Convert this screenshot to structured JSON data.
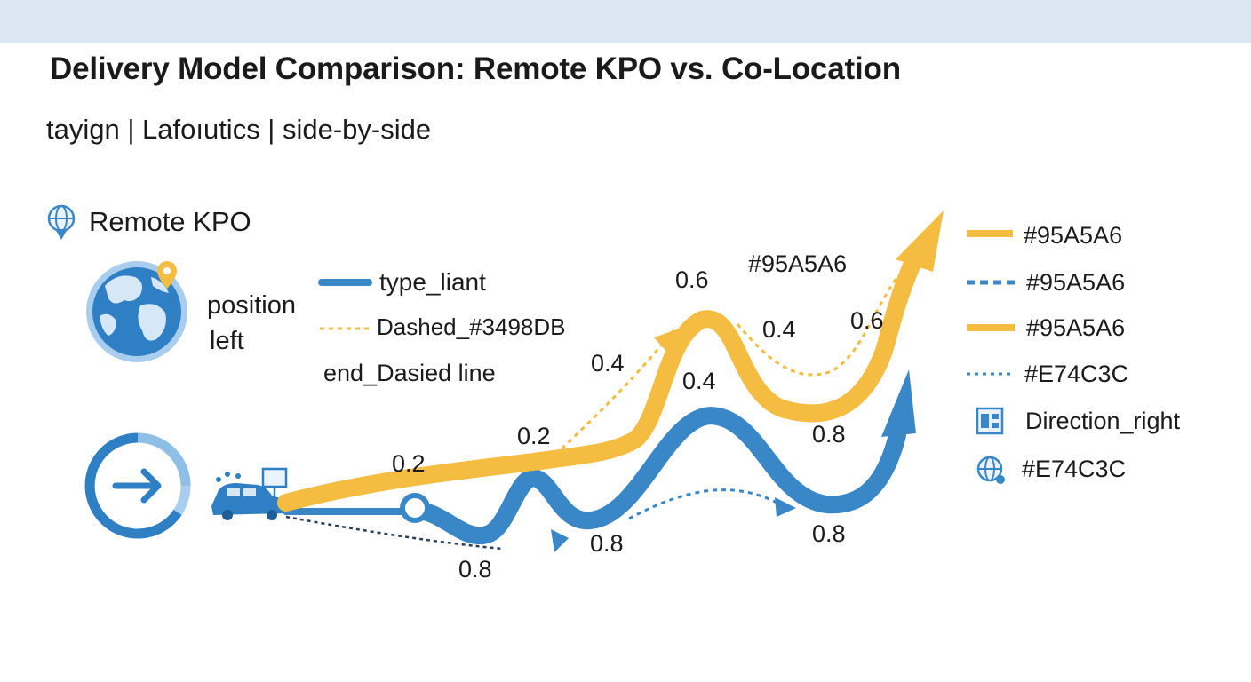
{
  "header": {
    "title": "Delivery Model Comparison: Remote KPO vs. Co-Location",
    "subtitle": "tayign | Lafoıutics | side-by-side"
  },
  "section": {
    "label": "Remote KPO",
    "icon": "globe-pin-icon"
  },
  "note": {
    "line1": "position",
    "line2": "left"
  },
  "inner_legend": {
    "items": [
      {
        "label": "type_liant",
        "style": "solid",
        "color": "#3A87C8"
      },
      {
        "label": "Dashed_#3498DB",
        "style": "dotted",
        "color": "#F5BC42"
      },
      {
        "label": "end_Dasied line",
        "style": "none"
      }
    ]
  },
  "flows": {
    "yellow_labels": [
      "0.2",
      "0.2",
      "0.4",
      "0.6",
      "#95A5A6",
      "0.4",
      "0.6"
    ],
    "blue_labels": [
      "0.4",
      "0.8",
      "0.8",
      "0.8",
      "0.8"
    ]
  },
  "legend": {
    "items": [
      {
        "label": "#95A5A6",
        "style": "solid",
        "color": "#F5BC42"
      },
      {
        "label": "#95A5A6",
        "style": "dashed",
        "color": "#3A87C8"
      },
      {
        "label": "#95A5A6",
        "style": "solid",
        "color": "#F5BC42"
      },
      {
        "label": "#E74C3C",
        "style": "dotted",
        "color": "#3A87C8"
      },
      {
        "label": "Direction_right",
        "style": "icon",
        "icon": "layout-icon"
      },
      {
        "label": "#E74C3C",
        "style": "icon",
        "icon": "globe-settings-icon"
      }
    ]
  },
  "colors": {
    "blue": "#3A87C8",
    "yellow": "#F5BC42",
    "band": "#DBE8F4"
  }
}
